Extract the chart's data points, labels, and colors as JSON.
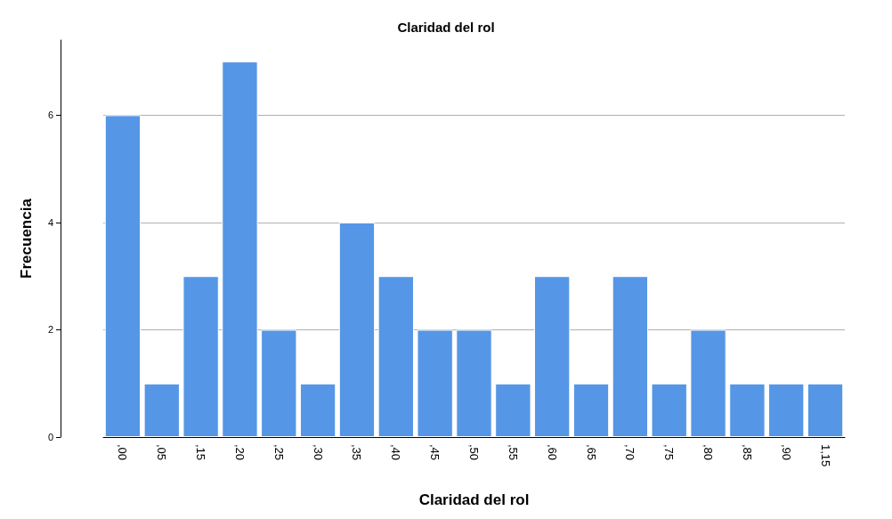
{
  "chart_data": {
    "type": "bar",
    "title": "Claridad del rol",
    "xlabel": "Claridad del rol",
    "ylabel": "Frecuencia",
    "categories": [
      ",00",
      ",05",
      ",15",
      ",20",
      ",25",
      ",30",
      ",35",
      ",40",
      ",45",
      ",50",
      ",55",
      ",60",
      ",65",
      ",70",
      ",75",
      ",80",
      ",85",
      ",90",
      "1,15"
    ],
    "values": [
      6,
      1,
      3,
      7,
      2,
      1,
      4,
      3,
      2,
      2,
      1,
      3,
      1,
      3,
      1,
      2,
      1,
      1,
      1
    ],
    "color": "#5596e6",
    "ylim": [
      0,
      7.4
    ],
    "yticks": [
      0,
      2,
      4,
      6
    ],
    "grid": "y"
  }
}
